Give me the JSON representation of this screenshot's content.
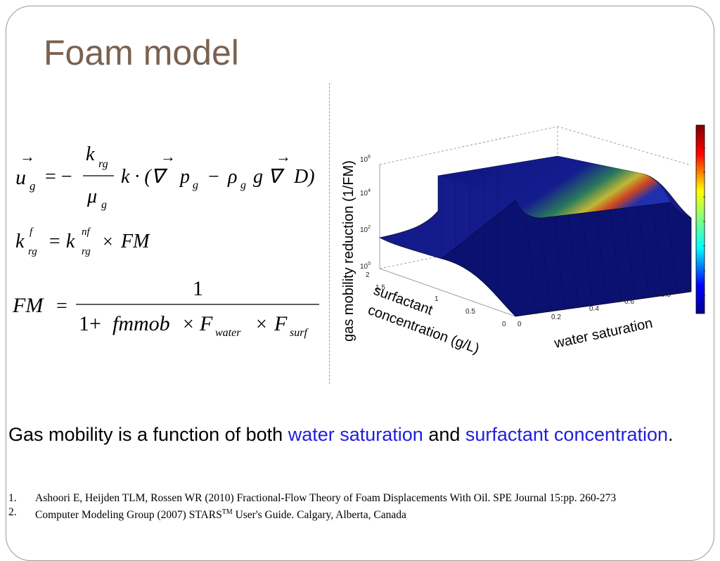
{
  "slide": {
    "title": "Foam model",
    "body_parts": {
      "p1": "Gas mobility is a function of both ",
      "h1": "water saturation",
      "p2": " and ",
      "h2": "surfactant concentration",
      "p3": "."
    },
    "references": [
      {
        "num": "1.",
        "text": "Ashoori E, Heijden TLM, Rossen WR (2010) Fractional-Flow Theory of Foam Displacements With Oil. SPE Journal 15:pp. 260-273"
      },
      {
        "num": "2.",
        "pre": "Computer Modeling Group (2007) STARS",
        "sup": "TM",
        "post": " User's Guide. Calgary, Alberta, Canada"
      }
    ]
  },
  "colors": {
    "title": "#7a6150",
    "highlight": "#1f1fdc",
    "divider": "#f08a3c",
    "surface": "#141b8c"
  },
  "equations": {
    "eq1": {
      "u": "u",
      "g": "g",
      "minus": "= −",
      "krg_k": "k",
      "krg_sub": "rg",
      "mu": "μ",
      "mu_sub": "g",
      "rest": "k · (∇",
      "p": "p",
      "p_sub": "g",
      "minus2": "−",
      "rho": "ρ",
      "rho_sub": "g",
      "g2": "g ∇",
      "D": "D)"
    },
    "eq2": {
      "k": "k",
      "sup1": "f",
      "sub1": "rg",
      "eq": "= k",
      "sup2": "nf",
      "sub2": "rg",
      "times": "×",
      "FM": "FM"
    },
    "eq3": {
      "FM": "FM",
      "eq": "=",
      "one": "1",
      "den1": "1+",
      "fmmob": "fmmob",
      "times1": "×",
      "F1": "F",
      "F1sub": "water",
      "times2": "×",
      "F2": "F",
      "F2sub": "surf"
    }
  },
  "chart_data": {
    "type": "surface",
    "zlabel": "gas mobility reduction (1/FM)",
    "ylabel": "surfactant concentration (g/L)",
    "xlabel": "water saturation",
    "x_ticks": [
      "0",
      "0.2",
      "0.4",
      "0.6",
      "0.8"
    ],
    "y_ticks": [
      "0",
      "0.5",
      "1",
      "1.5",
      "2"
    ],
    "z_ticks": [
      {
        "base": "10",
        "exp": "0"
      },
      {
        "base": "10",
        "exp": "2"
      },
      {
        "base": "10",
        "exp": "4"
      },
      {
        "base": "10",
        "exp": "6"
      }
    ],
    "z_scale": "log",
    "colormap": "jet",
    "colorbar": true
  }
}
